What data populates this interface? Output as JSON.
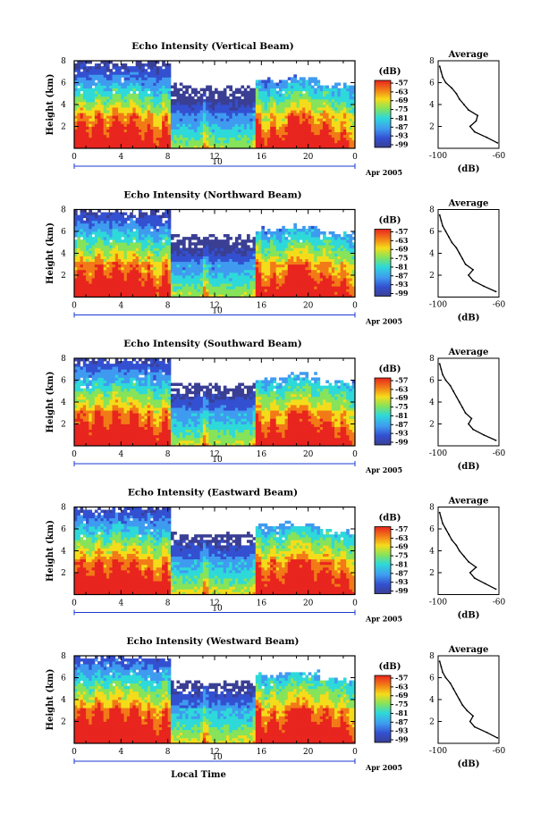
{
  "figure": {
    "xlabel": "Local Time",
    "ylabel": "Height (km)",
    "date_label": "Apr 2005",
    "day_label": "10",
    "colorbar_unit": "(dB)",
    "avg_title": "Average",
    "avg_xlabel": "(dB)"
  },
  "chart_data": [
    {
      "type": "heatmap",
      "title": "Echo Intensity (Vertical Beam)",
      "xlabel": "",
      "ylabel": "Height (km)",
      "xlim": [
        0,
        24
      ],
      "ylim": [
        0,
        8
      ],
      "xticks": [
        "0",
        "4",
        "8",
        "12",
        "16",
        "20",
        "0"
      ],
      "yticks": [
        "2",
        "4",
        "6",
        "8"
      ],
      "colorbar": {
        "label": "(dB)",
        "ticks": [
          "-57",
          "-63",
          "-69",
          "-75",
          "-81",
          "-87",
          "-93",
          "-99"
        ]
      },
      "average_profile": {
        "title": "Average",
        "xlabel": "(dB)",
        "xlim": [
          -100,
          -60
        ],
        "xticks": [
          "-100",
          "-60"
        ],
        "ylim": [
          0,
          8
        ],
        "yticks": [
          "2",
          "4",
          "6",
          "8"
        ],
        "height": [
          0.5,
          1.0,
          1.5,
          2.0,
          2.5,
          3.0,
          3.5,
          4.0,
          4.5,
          5.0,
          5.5,
          6.0,
          6.5,
          7.0,
          7.5
        ],
        "intensity": [
          -61,
          -68,
          -76,
          -79,
          -75,
          -74,
          -80,
          -83,
          -86,
          -88,
          -91,
          -95,
          -97,
          -98,
          -99
        ]
      }
    },
    {
      "type": "heatmap",
      "title": "Echo Intensity (Northward Beam)",
      "xlabel": "",
      "ylabel": "Height (km)",
      "xlim": [
        0,
        24
      ],
      "ylim": [
        0,
        8
      ],
      "xticks": [
        "0",
        "4",
        "8",
        "12",
        "16",
        "20",
        "0"
      ],
      "yticks": [
        "2",
        "4",
        "6",
        "8"
      ],
      "colorbar": {
        "label": "(dB)",
        "ticks": [
          "-57",
          "-63",
          "-69",
          "-75",
          "-81",
          "-87",
          "-93",
          "-99"
        ]
      },
      "average_profile": {
        "title": "Average",
        "xlabel": "(dB)",
        "xlim": [
          -100,
          -60
        ],
        "xticks": [
          "-100",
          "-60"
        ],
        "ylim": [
          0,
          8
        ],
        "yticks": [
          "2",
          "4",
          "6",
          "8"
        ],
        "height": [
          0.5,
          1.0,
          1.5,
          2.0,
          2.5,
          3.0,
          3.5,
          4.0,
          4.5,
          5.0,
          5.5,
          6.0,
          6.5,
          7.0,
          7.5
        ],
        "intensity": [
          -62,
          -70,
          -77,
          -80,
          -77,
          -82,
          -84,
          -86,
          -88,
          -91,
          -93,
          -95,
          -97,
          -98,
          -99
        ]
      }
    },
    {
      "type": "heatmap",
      "title": "Echo Intensity (Southward Beam)",
      "xlabel": "",
      "ylabel": "Height (km)",
      "xlim": [
        0,
        24
      ],
      "ylim": [
        0,
        8
      ],
      "xticks": [
        "0",
        "4",
        "8",
        "12",
        "16",
        "20",
        "0"
      ],
      "yticks": [
        "2",
        "4",
        "6",
        "8"
      ],
      "colorbar": {
        "label": "(dB)",
        "ticks": [
          "-57",
          "-63",
          "-69",
          "-75",
          "-81",
          "-87",
          "-93",
          "-99"
        ]
      },
      "average_profile": {
        "title": "Average",
        "xlabel": "(dB)",
        "xlim": [
          -100,
          -60
        ],
        "xticks": [
          "-100",
          "-60"
        ],
        "ylim": [
          0,
          8
        ],
        "yticks": [
          "2",
          "4",
          "6",
          "8"
        ],
        "height": [
          0.5,
          1.0,
          1.5,
          2.0,
          2.5,
          3.0,
          3.5,
          4.0,
          4.5,
          5.0,
          5.5,
          6.0,
          6.5,
          7.0,
          7.5
        ],
        "intensity": [
          -62,
          -70,
          -77,
          -80,
          -78,
          -82,
          -84,
          -86,
          -88,
          -90,
          -92,
          -95,
          -97,
          -98,
          -99
        ]
      }
    },
    {
      "type": "heatmap",
      "title": "Echo Intensity (Eastward Beam)",
      "xlabel": "",
      "ylabel": "Height (km)",
      "xlim": [
        0,
        24
      ],
      "ylim": [
        0,
        8
      ],
      "xticks": [
        "0",
        "4",
        "8",
        "12",
        "16",
        "20",
        "0"
      ],
      "yticks": [
        "2",
        "4",
        "6",
        "8"
      ],
      "colorbar": {
        "label": "(dB)",
        "ticks": [
          "-57",
          "-63",
          "-69",
          "-75",
          "-81",
          "-87",
          "-93",
          "-99"
        ]
      },
      "average_profile": {
        "title": "Average",
        "xlabel": "(dB)",
        "xlim": [
          -100,
          -60
        ],
        "xticks": [
          "-100",
          "-60"
        ],
        "ylim": [
          0,
          8
        ],
        "yticks": [
          "2",
          "4",
          "6",
          "8"
        ],
        "height": [
          0.5,
          1.0,
          1.5,
          2.0,
          2.5,
          3.0,
          3.5,
          4.0,
          4.5,
          5.0,
          5.5,
          6.0,
          6.5,
          7.0,
          7.5
        ],
        "intensity": [
          -62,
          -69,
          -76,
          -79,
          -75,
          -80,
          -83,
          -86,
          -88,
          -91,
          -93,
          -95,
          -97,
          -98,
          -99
        ]
      }
    },
    {
      "type": "heatmap",
      "title": "Echo Intensity (Westward Beam)",
      "xlabel": "Local Time",
      "ylabel": "Height (km)",
      "xlim": [
        0,
        24
      ],
      "ylim": [
        0,
        8
      ],
      "xticks": [
        "0",
        "4",
        "8",
        "12",
        "16",
        "20",
        "0"
      ],
      "yticks": [
        "2",
        "4",
        "6",
        "8"
      ],
      "colorbar": {
        "label": "(dB)",
        "ticks": [
          "-57",
          "-63",
          "-69",
          "-75",
          "-81",
          "-87",
          "-93",
          "-99"
        ]
      },
      "average_profile": {
        "title": "Average",
        "xlabel": "(dB)",
        "xlim": [
          -100,
          -60
        ],
        "xticks": [
          "-100",
          "-60"
        ],
        "ylim": [
          0,
          8
        ],
        "yticks": [
          "2",
          "4",
          "6",
          "8"
        ],
        "height": [
          0.5,
          1.0,
          1.5,
          2.0,
          2.5,
          3.0,
          3.5,
          4.0,
          4.5,
          5.0,
          5.5,
          6.0,
          6.5,
          7.0,
          7.5
        ],
        "intensity": [
          -61,
          -68,
          -76,
          -79,
          -77,
          -81,
          -84,
          -86,
          -88,
          -90,
          -92,
          -95,
          -97,
          -98,
          -99
        ]
      }
    }
  ]
}
